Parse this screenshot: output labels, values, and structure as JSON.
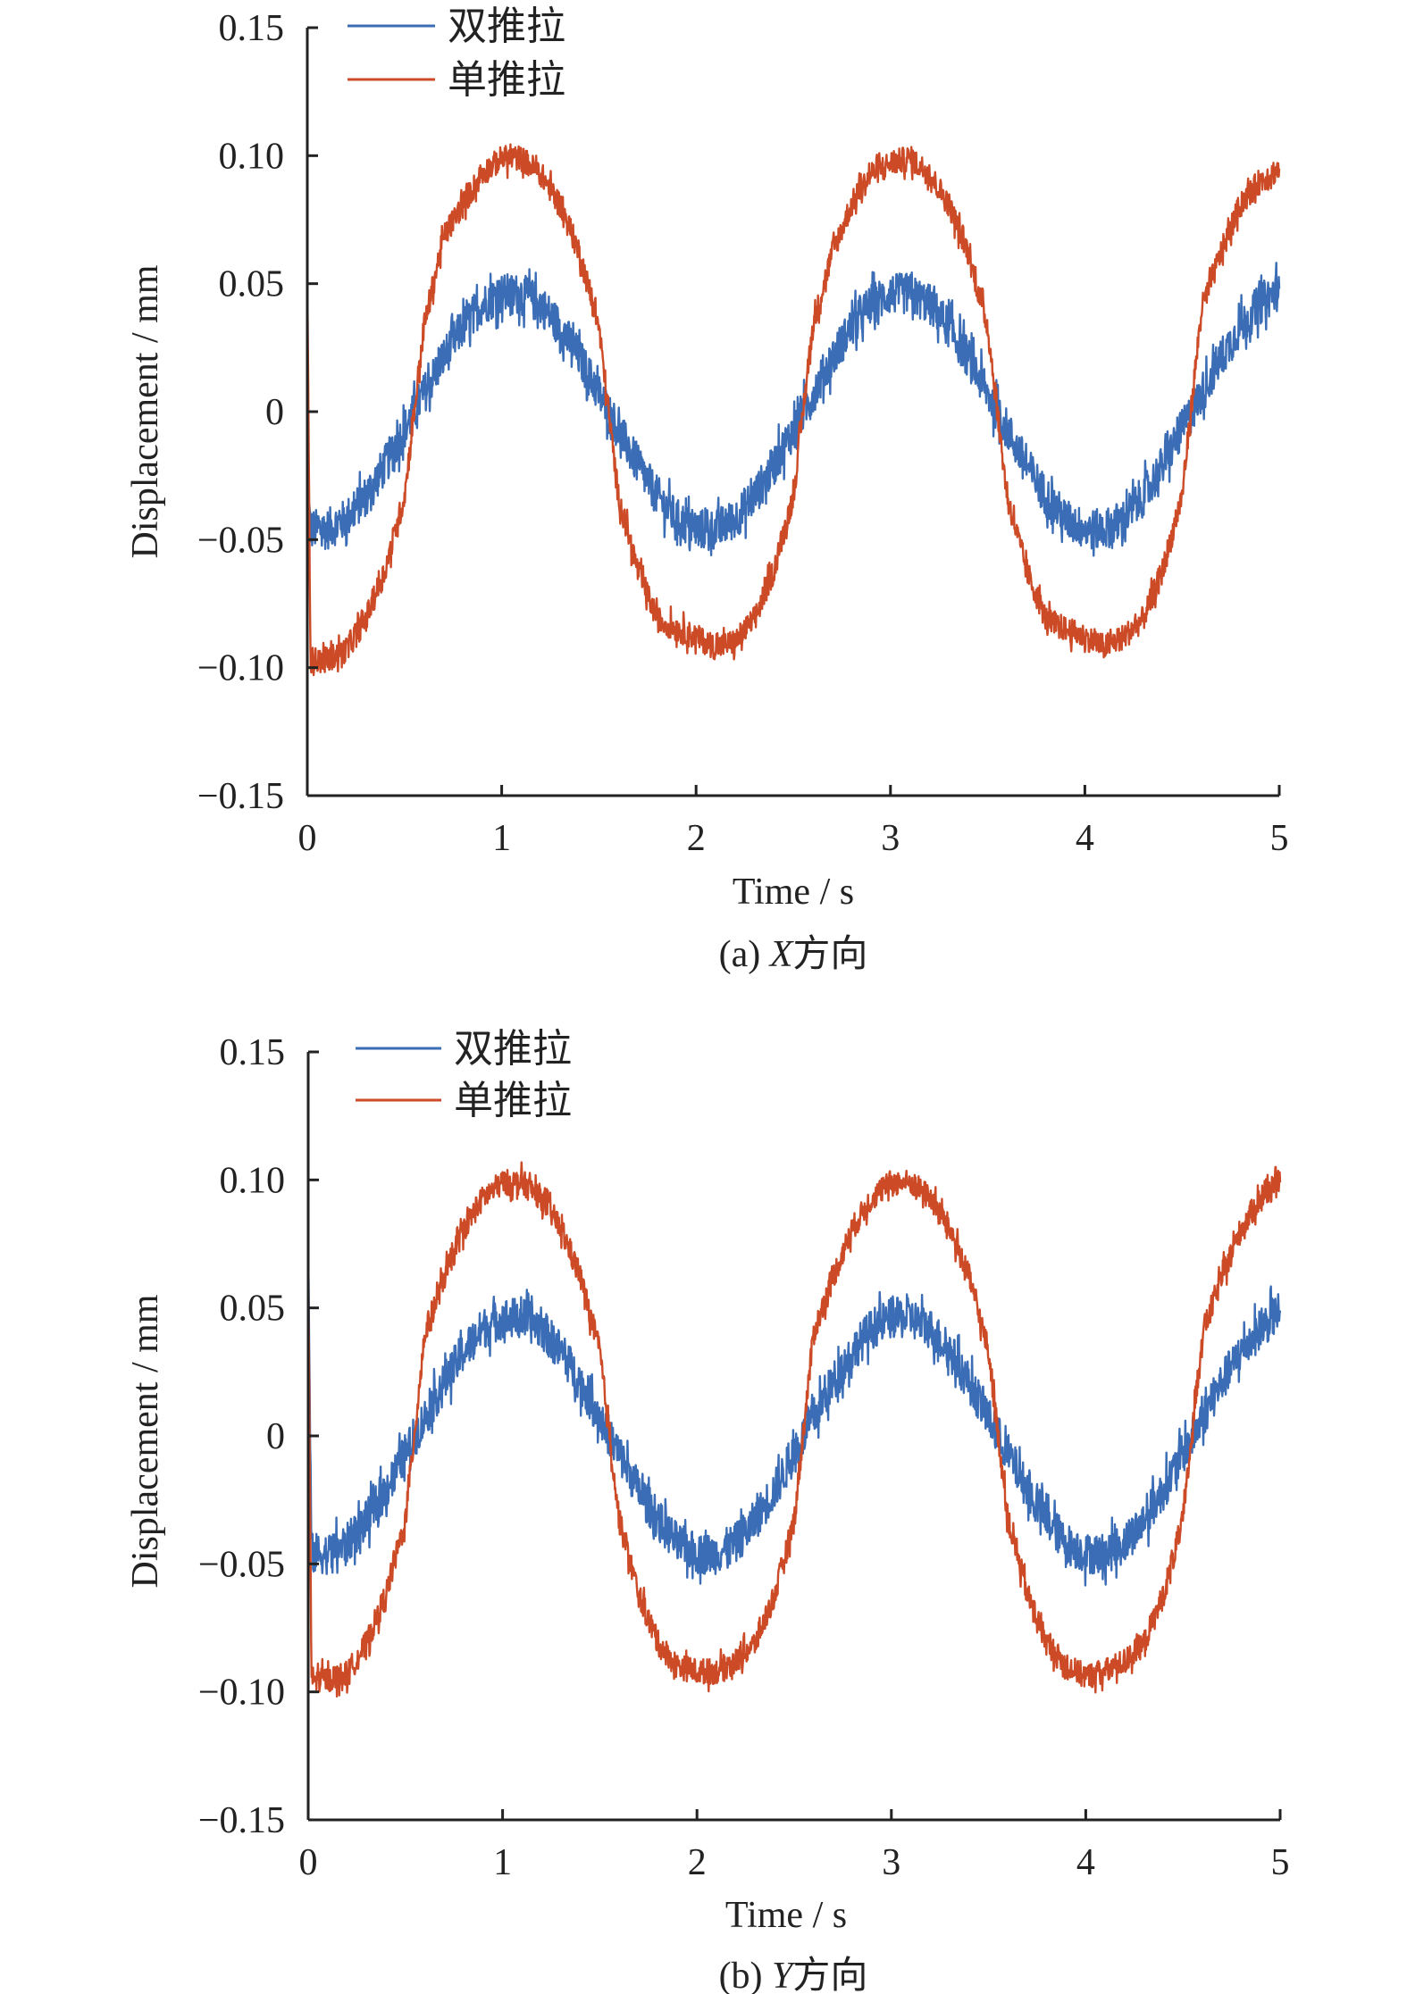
{
  "colors": {
    "double": "#3a6db5",
    "single": "#cc4a26",
    "axis": "#222222"
  },
  "chart_data": [
    {
      "type": "line",
      "caption_prefix": "(a) ",
      "caption_var": "X",
      "caption_suffix": "方向",
      "xlabel": "Time / s",
      "ylabel": "Displacement / mm",
      "xlim": [
        0,
        5
      ],
      "ylim": [
        -0.15,
        0.15
      ],
      "xticks": [
        "0",
        "1",
        "2",
        "3",
        "4",
        "5"
      ],
      "xtick_values": [
        0,
        1,
        2,
        3,
        4,
        5
      ],
      "yticks": [
        "0.15",
        "0.10",
        "0.05",
        "0",
        "−0.05",
        "−0.10",
        "−0.15"
      ],
      "ytick_values": [
        0.15,
        0.1,
        0.05,
        0,
        -0.05,
        -0.1,
        -0.15
      ],
      "legend_position": "top-left",
      "x_step": 0.1,
      "series": [
        {
          "name": "双推拉",
          "color_key": "double",
          "noise": 0.008,
          "values": [
            -0.03,
            -0.046,
            -0.042,
            -0.033,
            -0.021,
            -0.007,
            0.007,
            0.021,
            0.033,
            0.042,
            0.046,
            0.046,
            0.042,
            0.033,
            0.021,
            0.007,
            -0.007,
            -0.021,
            -0.033,
            -0.042,
            -0.046,
            -0.046,
            -0.042,
            -0.033,
            -0.021,
            -0.007,
            0.007,
            0.021,
            0.033,
            0.042,
            0.046,
            0.046,
            0.042,
            0.033,
            0.021,
            0.007,
            -0.007,
            -0.021,
            -0.033,
            -0.042,
            -0.046,
            -0.046,
            -0.042,
            -0.033,
            -0.021,
            -0.007,
            0.007,
            0.021,
            0.033,
            0.042,
            0.048
          ]
        },
        {
          "name": "单推拉",
          "color_key": "single",
          "noise": 0.005,
          "values": [
            0.05,
            -0.097,
            -0.093,
            -0.081,
            -0.062,
            -0.033,
            0.033,
            0.068,
            0.081,
            0.093,
            0.099,
            0.099,
            0.093,
            0.081,
            0.062,
            0.033,
            -0.033,
            -0.062,
            -0.081,
            -0.085,
            -0.088,
            -0.092,
            -0.09,
            -0.081,
            -0.062,
            -0.033,
            0.033,
            0.062,
            0.081,
            0.093,
            0.097,
            0.099,
            0.093,
            0.081,
            0.062,
            0.033,
            -0.033,
            -0.062,
            -0.081,
            -0.085,
            -0.088,
            -0.092,
            -0.088,
            -0.081,
            -0.062,
            -0.033,
            0.04,
            0.062,
            0.081,
            0.09,
            0.095
          ]
        }
      ]
    },
    {
      "type": "line",
      "caption_prefix": "(b) ",
      "caption_var": "Y",
      "caption_suffix": "方向",
      "xlabel": "Time / s",
      "ylabel": "Displacement / mm",
      "xlim": [
        0,
        5
      ],
      "ylim": [
        -0.15,
        0.15
      ],
      "xticks": [
        "0",
        "1",
        "2",
        "3",
        "4",
        "5"
      ],
      "xtick_values": [
        0,
        1,
        2,
        3,
        4,
        5
      ],
      "yticks": [
        "0.15",
        "0.10",
        "0.05",
        "0",
        "−0.05",
        "−0.10",
        "−0.15"
      ],
      "ytick_values": [
        0.15,
        0.1,
        0.05,
        0,
        -0.05,
        -0.1,
        -0.15
      ],
      "legend_position": "top-left",
      "x_step": 0.1,
      "series": [
        {
          "name": "双推拉",
          "color_key": "double",
          "noise": 0.008,
          "values": [
            0.07,
            -0.046,
            -0.042,
            -0.033,
            -0.021,
            -0.007,
            0.007,
            0.021,
            0.033,
            0.042,
            0.046,
            0.046,
            0.042,
            0.033,
            0.021,
            0.007,
            -0.007,
            -0.021,
            -0.033,
            -0.042,
            -0.046,
            -0.046,
            -0.042,
            -0.033,
            -0.021,
            -0.007,
            0.007,
            0.021,
            0.033,
            0.042,
            0.046,
            0.046,
            0.042,
            0.033,
            0.021,
            0.007,
            -0.007,
            -0.021,
            -0.033,
            -0.042,
            -0.046,
            -0.046,
            -0.042,
            -0.033,
            -0.021,
            -0.007,
            0.007,
            0.021,
            0.033,
            0.042,
            0.049
          ]
        },
        {
          "name": "单推拉",
          "color_key": "single",
          "noise": 0.005,
          "values": [
            0.072,
            -0.095,
            -0.093,
            -0.081,
            -0.062,
            -0.033,
            0.04,
            0.062,
            0.081,
            0.093,
            0.099,
            0.099,
            0.093,
            0.081,
            0.062,
            0.033,
            -0.033,
            -0.062,
            -0.081,
            -0.09,
            -0.092,
            -0.092,
            -0.088,
            -0.081,
            -0.062,
            -0.033,
            0.04,
            0.062,
            0.081,
            0.093,
            0.099,
            0.099,
            0.093,
            0.081,
            0.062,
            0.033,
            -0.033,
            -0.062,
            -0.081,
            -0.09,
            -0.094,
            -0.092,
            -0.088,
            -0.081,
            -0.062,
            -0.033,
            0.04,
            0.062,
            0.081,
            0.093,
            0.099
          ]
        }
      ]
    }
  ]
}
